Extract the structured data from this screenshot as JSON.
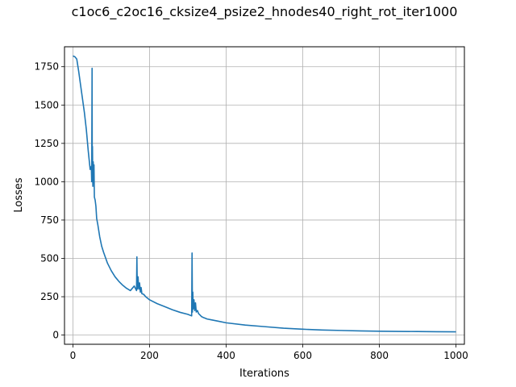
{
  "chart_data": {
    "type": "line",
    "title": "c1oc6_c2oc16_cksize4_psize2_hnodes40_right_rot_iter1000",
    "xlabel": "Iterations",
    "ylabel": "Losses",
    "xlim": [
      -22,
      1022
    ],
    "ylim": [
      -60,
      1880
    ],
    "grid": true,
    "x_ticks": [
      0,
      200,
      400,
      600,
      800,
      1000
    ],
    "y_ticks": [
      0,
      250,
      500,
      750,
      1000,
      1250,
      1500,
      1750
    ],
    "x_tick_labels": [
      "0",
      "200",
      "400",
      "600",
      "800",
      "1000"
    ],
    "y_tick_labels": [
      "0",
      "250",
      "500",
      "750",
      "1000",
      "1250",
      "1500",
      "1750"
    ],
    "line_color": "#1f77b4",
    "series": [
      {
        "x": [
          0,
          5,
          10,
          15,
          20,
          25,
          30,
          35,
          40,
          45,
          48,
          49,
          50,
          50.5,
          51,
          52,
          53,
          54,
          55,
          56,
          58,
          60,
          62,
          65,
          70,
          75,
          80,
          90,
          100,
          110,
          120,
          130,
          140,
          150,
          160,
          166,
          167,
          168,
          169,
          170,
          172,
          174,
          176,
          178,
          180,
          185,
          190,
          200,
          220,
          240,
          260,
          280,
          300,
          310,
          311,
          312,
          313,
          314,
          316,
          318,
          320,
          322,
          325,
          328,
          332,
          336,
          340,
          345,
          350,
          360,
          380,
          400,
          450,
          500,
          550,
          600,
          650,
          700,
          750,
          800,
          850,
          900,
          950,
          1000
        ],
        "y": [
          1820,
          1815,
          1800,
          1720,
          1630,
          1540,
          1450,
          1340,
          1200,
          1080,
          1100,
          1000,
          1740,
          1000,
          1230,
          970,
          1130,
          1000,
          1110,
          900,
          880,
          840,
          760,
          720,
          640,
          580,
          540,
          470,
          420,
          380,
          350,
          325,
          305,
          290,
          320,
          290,
          510,
          300,
          330,
          380,
          300,
          340,
          280,
          310,
          270,
          265,
          250,
          230,
          205,
          185,
          165,
          148,
          135,
          125,
          535,
          150,
          280,
          170,
          230,
          160,
          210,
          150,
          160,
          140,
          130,
          120,
          115,
          110,
          105,
          100,
          90,
          80,
          65,
          55,
          45,
          38,
          33,
          30,
          27,
          25,
          24,
          23,
          22,
          21
        ]
      }
    ]
  }
}
